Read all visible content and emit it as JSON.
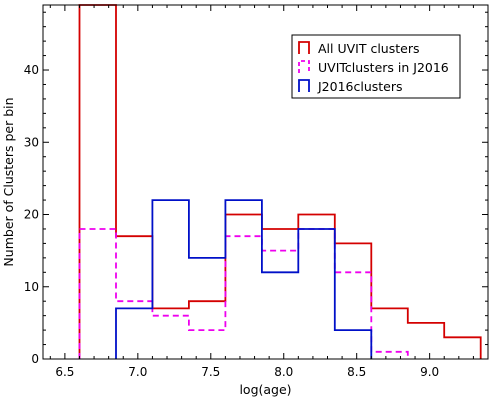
{
  "chart_data": {
    "type": "histogram",
    "xlabel": "log(age)",
    "ylabel": "Number of Clusters per bin",
    "xlim": [
      6.35,
      9.4
    ],
    "ylim": [
      0,
      49
    ],
    "xticks": [
      6.5,
      7.0,
      7.5,
      8.0,
      8.5,
      9.0
    ],
    "xtick_labels": [
      "6.5",
      "7.0",
      "7.5",
      "8.0",
      "8.5",
      "9.0"
    ],
    "yticks": [
      0,
      10,
      20,
      30,
      40
    ],
    "ytick_labels": [
      "0",
      "10",
      "20",
      "30",
      "40"
    ],
    "grid": false,
    "legend_position": "top-right",
    "series": [
      {
        "name": "All UVIT clusters",
        "color": "#d40000",
        "style": "solid",
        "bin_edges": [
          6.6,
          6.85,
          7.1,
          7.35,
          7.6,
          7.85,
          8.1,
          8.35,
          8.6,
          8.85,
          9.1,
          9.35
        ],
        "counts": [
          49,
          17,
          7,
          8,
          20,
          18,
          20,
          16,
          7,
          5,
          3
        ]
      },
      {
        "name": "UVITclusters in J2016",
        "color": "#ee00ee",
        "style": "dashed",
        "bin_edges": [
          6.6,
          6.85,
          7.1,
          7.35,
          7.6,
          7.85,
          8.1,
          8.35,
          8.6,
          8.85
        ],
        "counts": [
          18,
          8,
          6,
          4,
          17,
          15,
          18,
          12,
          1
        ]
      },
      {
        "name": "J2016clusters",
        "color": "#0010c8",
        "style": "solid",
        "bin_edges": [
          6.85,
          7.1,
          7.35,
          7.6,
          7.85,
          8.1,
          8.35,
          8.6
        ],
        "counts": [
          7,
          22,
          14,
          22,
          12,
          18,
          4
        ]
      }
    ]
  }
}
